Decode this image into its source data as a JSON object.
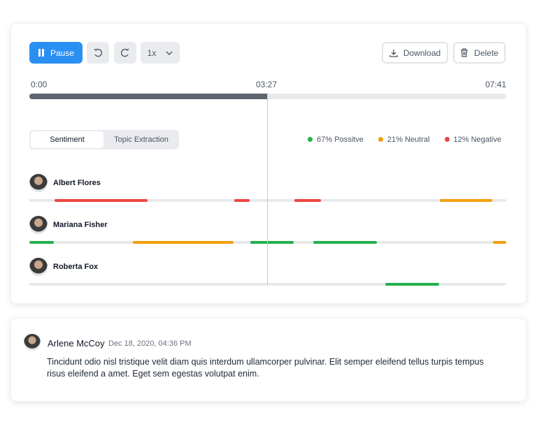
{
  "controls": {
    "pause": "Pause",
    "speed": "1x",
    "download": "Download",
    "delete": "Delete"
  },
  "timeline": {
    "start": "0:00",
    "current": "03:27",
    "end": "07:41"
  },
  "tabs": [
    "Sentiment",
    "Topic Extraction"
  ],
  "legend": [
    "67% Possitve",
    "21% Neutral",
    "12% Negative"
  ],
  "speakers": [
    "Albert Flores",
    "Mariana Fisher",
    "Roberta Fox"
  ],
  "comment": {
    "name": "Arlene McCoy",
    "date": "Dec 18, 2020, 04:36 PM",
    "text": "Tincidunt odio nisl tristique velit diam quis interdum ullamcorper pulvinar. Elit semper eleifend tellus turpis tempus risus eleifend a amet. Eget sem egestas volutpat enim."
  }
}
